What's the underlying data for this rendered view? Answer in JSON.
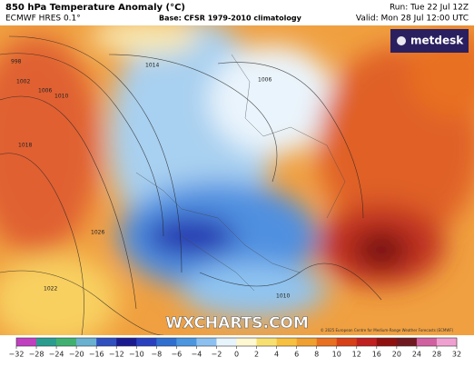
{
  "header": {
    "title": "850 hPa Temperature Anomaly (°C)",
    "model": "ECMWF HRES 0.1°",
    "base": "Base: CFSR 1979-2010 climatology",
    "run": "Run: Tue 22 Jul 12Z",
    "valid": "Valid: Mon 28 Jul 12:00 UTC"
  },
  "logo": "metdesk",
  "watermark": "WXCHARTS.COM",
  "copyright": "© 2025 European Centre for Medium-Range Weather Forecasts (ECMWF)",
  "isobar_labels": [
    "998",
    "1002",
    "1006",
    "1010",
    "1014",
    "1006",
    "1018",
    "1026",
    "1022",
    "1010"
  ],
  "colorbar": {
    "ticks": [
      {
        "value": -32,
        "label": "−32"
      },
      {
        "value": -28,
        "label": "−28"
      },
      {
        "value": -24,
        "label": "−24"
      },
      {
        "value": -20,
        "label": "−20"
      },
      {
        "value": -16,
        "label": "−16"
      },
      {
        "value": -12,
        "label": "−12"
      },
      {
        "value": -10,
        "label": "−10"
      },
      {
        "value": -8,
        "label": "−8"
      },
      {
        "value": -6,
        "label": "−6"
      },
      {
        "value": -4,
        "label": "−4"
      },
      {
        "value": -2,
        "label": "−2"
      },
      0,
      2,
      4,
      6,
      8,
      10,
      12,
      16,
      20,
      24,
      28,
      32
    ],
    "colors": [
      "#c040c0",
      "#2a9d8f",
      "#40b070",
      "#6ab0d0",
      "#3050c0",
      "#1a1a90",
      "#2840c0",
      "#2f6fd0",
      "#4c96e0",
      "#8cc0f0",
      "#e8f4fc",
      "#fff8d0",
      "#f8e070",
      "#f8c040",
      "#f0a030",
      "#e87020",
      "#d84018",
      "#c02020",
      "#901010",
      "#701820",
      "#d060a0",
      "#f0a0d0"
    ]
  }
}
